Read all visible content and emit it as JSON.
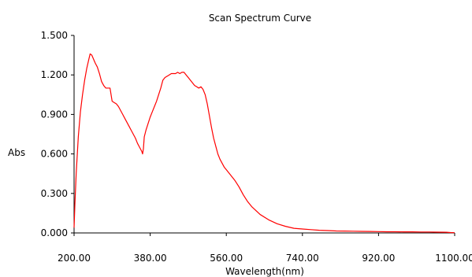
{
  "chart_data": {
    "type": "line",
    "title": "Scan Spectrum Curve",
    "xlabel": "Wavelength(nm)",
    "ylabel": "Abs",
    "xlim": [
      200,
      1100
    ],
    "ylim": [
      0,
      1.5
    ],
    "x_ticks": [
      "200.00",
      "380.00",
      "560.00",
      "740.00",
      "920.00",
      "1100.00"
    ],
    "y_ticks": [
      "0.000",
      "0.300",
      "0.600",
      "0.900",
      "1.200",
      "1.500"
    ],
    "grid": false,
    "line_color": "#ff0000",
    "axis_color": "#000000",
    "series": [
      {
        "x": [
          200,
          202,
          205,
          210,
          215,
          220,
          225,
          230,
          235,
          238,
          242,
          246,
          250,
          255,
          260,
          265,
          270,
          275,
          280,
          285,
          290,
          295,
          300,
          305,
          310,
          315,
          320,
          325,
          330,
          335,
          340,
          345,
          350,
          355,
          360,
          362,
          364,
          366,
          370,
          375,
          380,
          385,
          390,
          395,
          400,
          405,
          410,
          415,
          420,
          425,
          430,
          435,
          440,
          445,
          450,
          455,
          460,
          465,
          470,
          475,
          480,
          485,
          490,
          495,
          500,
          505,
          510,
          515,
          520,
          525,
          530,
          535,
          540,
          545,
          550,
          555,
          560,
          570,
          580,
          590,
          600,
          610,
          620,
          640,
          660,
          680,
          700,
          720,
          740,
          760,
          780,
          800,
          820,
          840,
          860,
          880,
          900,
          920,
          940,
          960,
          980,
          1000,
          1020,
          1040,
          1060,
          1080,
          1090,
          1100
        ],
        "y": [
          0.04,
          0.22,
          0.45,
          0.73,
          0.92,
          1.05,
          1.16,
          1.25,
          1.32,
          1.36,
          1.35,
          1.32,
          1.29,
          1.26,
          1.21,
          1.15,
          1.12,
          1.1,
          1.1,
          1.1,
          1.0,
          0.99,
          0.98,
          0.96,
          0.93,
          0.9,
          0.87,
          0.84,
          0.81,
          0.78,
          0.75,
          0.72,
          0.68,
          0.65,
          0.62,
          0.6,
          0.64,
          0.73,
          0.78,
          0.83,
          0.88,
          0.92,
          0.96,
          1.0,
          1.05,
          1.1,
          1.16,
          1.18,
          1.19,
          1.2,
          1.21,
          1.21,
          1.21,
          1.22,
          1.21,
          1.22,
          1.22,
          1.2,
          1.18,
          1.16,
          1.14,
          1.12,
          1.11,
          1.1,
          1.11,
          1.09,
          1.05,
          0.98,
          0.89,
          0.8,
          0.72,
          0.66,
          0.6,
          0.56,
          0.53,
          0.5,
          0.48,
          0.44,
          0.4,
          0.35,
          0.29,
          0.24,
          0.2,
          0.14,
          0.1,
          0.07,
          0.05,
          0.035,
          0.03,
          0.025,
          0.02,
          0.018,
          0.015,
          0.014,
          0.013,
          0.012,
          0.011,
          0.01,
          0.009,
          0.009,
          0.008,
          0.008,
          0.007,
          0.007,
          0.006,
          0.005,
          0.003,
          0.002
        ]
      }
    ]
  }
}
